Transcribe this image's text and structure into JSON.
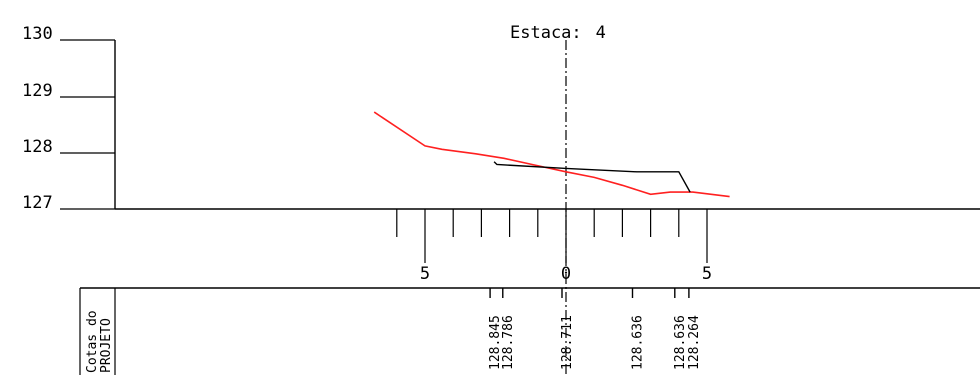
{
  "section": {
    "label": "Estaca:",
    "station": "4"
  },
  "elevation_axis": {
    "ticks": [
      "130",
      "129",
      "128",
      "127"
    ],
    "min": 127,
    "max": 130
  },
  "offset_axis": {
    "ticks": [
      "5",
      "0",
      "5"
    ],
    "range": [
      -6,
      5
    ]
  },
  "table": {
    "row_label_line1": "Cotas do",
    "row_label_line2": "PROJETO"
  },
  "colors": {
    "terrain": "#ff2020",
    "project": "#000000",
    "axis": "#000000"
  },
  "chart_data": {
    "type": "line",
    "title": "Estaca: 4",
    "ylim": [
      127,
      130
    ],
    "xlim": [
      -6,
      5
    ],
    "series": [
      {
        "id": "terreno",
        "points": [
          [
            -6.8,
            128.72
          ],
          [
            -5.0,
            128.12
          ],
          [
            -4.4,
            128.06
          ],
          [
            -3.2,
            127.98
          ],
          [
            -2.2,
            127.9
          ],
          [
            -1.1,
            127.78
          ],
          [
            0,
            127.66
          ],
          [
            1.0,
            127.56
          ],
          [
            2.0,
            127.42
          ],
          [
            3.0,
            127.26
          ],
          [
            3.7,
            127.3
          ],
          [
            4.5,
            127.3
          ],
          [
            5.8,
            127.22
          ]
        ]
      },
      {
        "id": "projeto",
        "points": [
          [
            -2.55,
            127.84
          ],
          [
            -2.45,
            127.79
          ],
          [
            0,
            127.72
          ],
          [
            2.5,
            127.66
          ],
          [
            4.0,
            127.66
          ],
          [
            4.4,
            127.3
          ]
        ]
      }
    ],
    "project_labels": [
      {
        "x": -2.55,
        "text": "128.845"
      },
      {
        "x": -2.1,
        "text": "128.786"
      },
      {
        "x": 0,
        "text": "128.711"
      },
      {
        "x": 2.5,
        "text": "128.636"
      },
      {
        "x": 4.0,
        "text": "128.636"
      },
      {
        "x": 4.5,
        "text": "128.264"
      }
    ]
  }
}
